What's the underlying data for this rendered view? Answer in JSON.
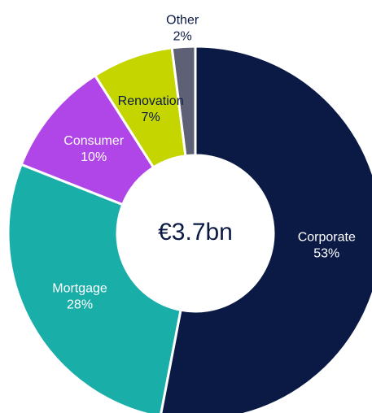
{
  "chart_data": {
    "type": "donut",
    "center_label": "€3.7bn",
    "categories": [
      "Corporate",
      "Mortgage",
      "Consumer",
      "Renovation",
      "Other"
    ],
    "values": [
      53,
      28,
      10,
      7,
      2
    ],
    "value_labels": [
      "53%",
      "28%",
      "10%",
      "7%",
      "2%"
    ],
    "colors": [
      "#0b1a45",
      "#1aaea8",
      "#b146e8",
      "#c5d500",
      "#5e6175"
    ]
  }
}
